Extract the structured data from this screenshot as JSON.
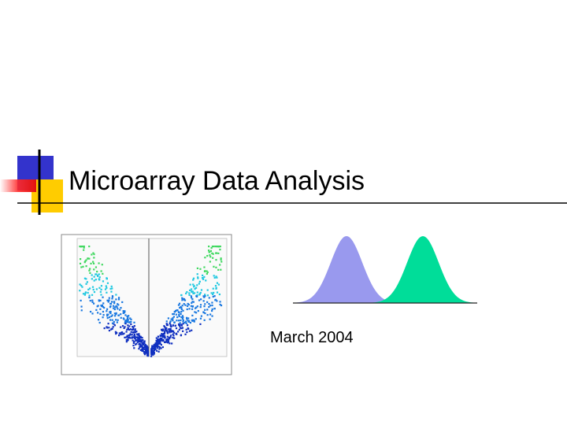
{
  "title": "Microarray Data Analysis",
  "subtitle": "March 2004"
}
